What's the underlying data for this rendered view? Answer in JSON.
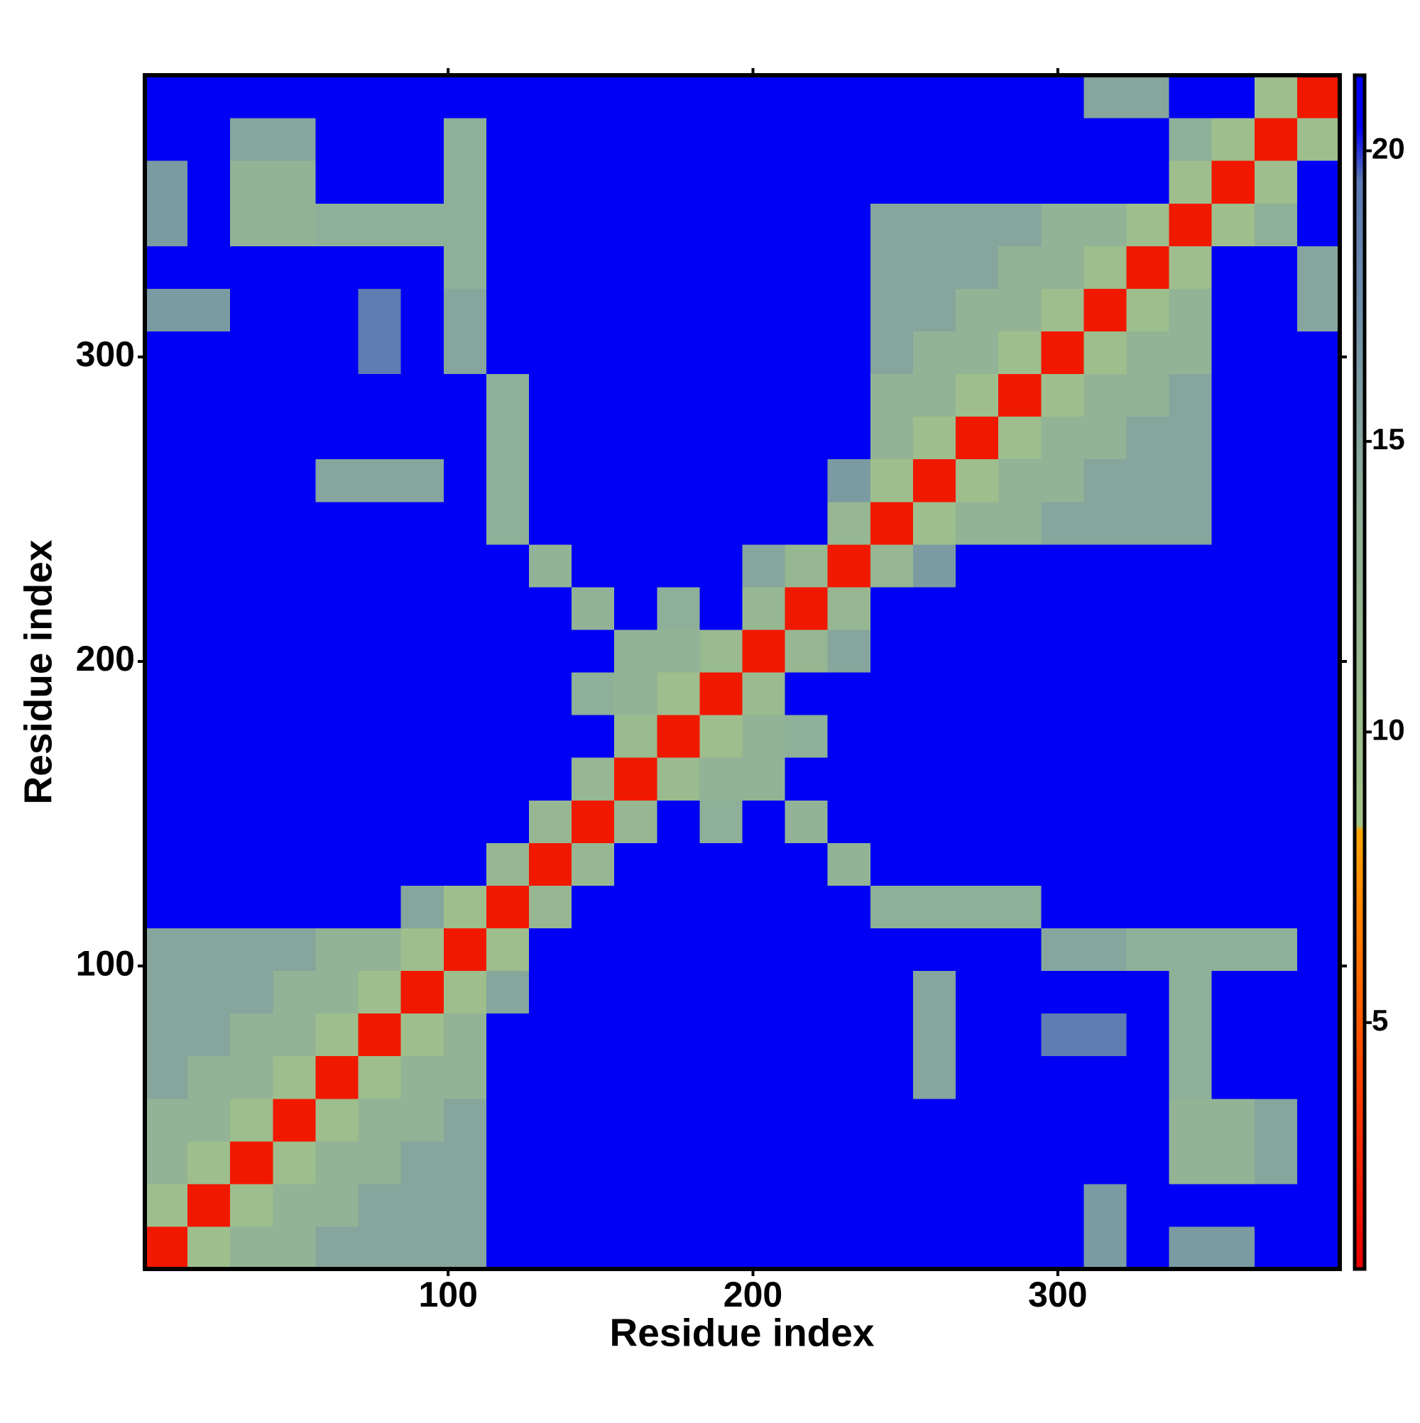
{
  "chart_data": {
    "type": "heatmap",
    "xlabel": "Residue index",
    "ylabel": "Residue index",
    "xlim": [
      0.5,
      392.5
    ],
    "ylim": [
      0.5,
      392.5
    ],
    "xticks": [
      100,
      200,
      300
    ],
    "yticks": [
      100,
      200,
      300
    ],
    "zlim": [
      0.76,
      21.3
    ],
    "zticks": [
      5,
      10,
      15,
      20
    ],
    "colorscale": [
      {
        "value": 0.76,
        "color": "#e80000"
      },
      {
        "value": 4,
        "color": "#ff4000"
      },
      {
        "value": 8.3,
        "color": "#ffa500"
      },
      {
        "value": 8.4,
        "color": "#a4c488"
      },
      {
        "value": 14,
        "color": "#8eaf98"
      },
      {
        "value": 19.5,
        "color": "#5a78b4"
      },
      {
        "value": 20.4,
        "color": "#0000f5"
      },
      {
        "value": 21.3,
        "color": "#0000f5"
      }
    ],
    "values": [
      [
        2,
        10,
        13,
        13,
        15,
        15,
        15,
        15,
        21,
        21,
        21,
        21,
        21,
        21,
        21,
        21,
        21,
        21,
        21,
        21,
        21,
        21,
        16,
        21,
        16,
        16,
        21,
        21
      ],
      [
        10,
        2,
        10,
        13,
        13,
        15,
        15,
        15,
        21,
        21,
        21,
        21,
        21,
        21,
        21,
        21,
        21,
        21,
        21,
        21,
        21,
        21,
        16,
        21,
        21,
        21,
        21,
        21
      ],
      [
        13,
        10,
        2,
        10,
        13,
        13,
        15,
        15,
        21,
        21,
        21,
        21,
        21,
        21,
        21,
        21,
        21,
        21,
        21,
        21,
        21,
        21,
        21,
        21,
        13,
        13,
        15,
        21
      ],
      [
        13,
        13,
        10,
        2,
        10,
        13,
        13,
        15,
        21,
        21,
        21,
        21,
        21,
        21,
        21,
        21,
        21,
        21,
        21,
        21,
        21,
        21,
        21,
        21,
        13,
        13,
        15,
        21
      ],
      [
        15,
        13,
        13,
        10,
        2,
        10,
        13,
        13,
        21,
        21,
        21,
        21,
        21,
        21,
        21,
        21,
        21,
        21,
        15,
        21,
        21,
        21,
        21,
        21,
        14,
        21,
        21,
        21
      ],
      [
        15,
        15,
        13,
        13,
        10,
        2,
        10,
        13,
        21,
        21,
        21,
        21,
        21,
        21,
        21,
        21,
        21,
        21,
        15,
        21,
        21,
        19,
        19,
        21,
        14,
        21,
        21,
        21
      ],
      [
        15,
        15,
        15,
        13,
        13,
        10,
        2,
        10,
        15,
        21,
        21,
        21,
        21,
        21,
        21,
        21,
        21,
        21,
        15,
        21,
        21,
        21,
        21,
        21,
        14,
        21,
        21,
        21
      ],
      [
        15,
        15,
        15,
        15,
        13,
        13,
        10,
        2,
        10,
        21,
        21,
        21,
        21,
        21,
        21,
        21,
        21,
        21,
        21,
        21,
        21,
        15,
        15,
        14,
        14,
        14,
        14,
        21
      ],
      [
        21,
        21,
        21,
        21,
        21,
        21,
        15,
        10,
        2,
        12,
        21,
        21,
        21,
        21,
        21,
        21,
        21,
        14,
        14,
        14,
        14,
        21,
        21,
        21,
        21,
        21,
        21,
        21
      ],
      [
        21,
        21,
        21,
        21,
        21,
        21,
        21,
        21,
        12,
        2,
        12,
        21,
        21,
        21,
        21,
        21,
        13,
        21,
        21,
        21,
        21,
        21,
        21,
        21,
        21,
        21,
        21,
        21
      ],
      [
        21,
        21,
        21,
        21,
        21,
        21,
        21,
        21,
        21,
        12,
        2,
        12,
        21,
        14,
        21,
        13,
        21,
        21,
        21,
        21,
        21,
        21,
        21,
        21,
        21,
        21,
        21,
        21
      ],
      [
        21,
        21,
        21,
        21,
        21,
        21,
        21,
        21,
        21,
        21,
        12,
        2,
        11,
        13,
        13,
        21,
        21,
        21,
        21,
        21,
        21,
        21,
        21,
        21,
        21,
        21,
        21,
        21
      ],
      [
        21,
        21,
        21,
        21,
        21,
        21,
        21,
        21,
        21,
        21,
        21,
        11,
        2,
        10,
        13,
        14,
        21,
        21,
        21,
        21,
        21,
        21,
        21,
        21,
        21,
        21,
        21,
        21
      ],
      [
        21,
        21,
        21,
        21,
        21,
        21,
        21,
        21,
        21,
        21,
        14,
        13,
        10,
        2,
        11,
        21,
        21,
        21,
        21,
        21,
        21,
        21,
        21,
        21,
        21,
        21,
        21,
        21
      ],
      [
        21,
        21,
        21,
        21,
        21,
        21,
        21,
        21,
        21,
        21,
        21,
        13,
        13,
        11,
        2,
        12,
        15,
        21,
        21,
        21,
        21,
        21,
        21,
        21,
        21,
        21,
        21,
        21
      ],
      [
        21,
        21,
        21,
        21,
        21,
        21,
        21,
        21,
        21,
        21,
        13,
        21,
        14,
        21,
        12,
        2,
        12,
        21,
        21,
        21,
        21,
        21,
        21,
        21,
        21,
        21,
        21,
        21
      ],
      [
        21,
        21,
        21,
        21,
        21,
        21,
        21,
        21,
        21,
        13,
        21,
        21,
        21,
        21,
        15,
        12,
        2,
        12,
        16,
        21,
        21,
        21,
        21,
        21,
        21,
        21,
        21,
        21
      ],
      [
        21,
        21,
        21,
        21,
        21,
        21,
        21,
        21,
        14,
        21,
        21,
        21,
        21,
        21,
        21,
        21,
        12,
        2,
        10,
        13,
        13,
        15,
        15,
        15,
        15,
        21,
        21,
        21
      ],
      [
        21,
        21,
        21,
        21,
        15,
        15,
        15,
        21,
        14,
        21,
        21,
        21,
        21,
        21,
        21,
        21,
        16,
        10,
        2,
        10,
        13,
        13,
        15,
        15,
        15,
        21,
        21,
        21
      ],
      [
        21,
        21,
        21,
        21,
        21,
        21,
        21,
        21,
        14,
        21,
        21,
        21,
        21,
        21,
        21,
        21,
        21,
        13,
        10,
        2,
        10,
        13,
        13,
        15,
        15,
        21,
        21,
        21
      ],
      [
        21,
        21,
        21,
        21,
        21,
        21,
        21,
        21,
        14,
        21,
        21,
        21,
        21,
        21,
        21,
        21,
        21,
        13,
        13,
        10,
        2,
        10,
        13,
        13,
        15,
        21,
        21,
        21
      ],
      [
        21,
        21,
        21,
        21,
        21,
        19,
        21,
        15,
        21,
        21,
        21,
        21,
        21,
        21,
        21,
        21,
        21,
        15,
        13,
        13,
        10,
        2,
        10,
        13,
        13,
        21,
        21,
        21
      ],
      [
        16,
        16,
        21,
        21,
        21,
        19,
        21,
        15,
        21,
        21,
        21,
        21,
        21,
        21,
        21,
        21,
        21,
        15,
        15,
        13,
        13,
        10,
        2,
        10,
        13,
        21,
        21,
        15
      ],
      [
        21,
        21,
        21,
        21,
        21,
        21,
        21,
        14,
        21,
        21,
        21,
        21,
        21,
        21,
        21,
        21,
        21,
        15,
        15,
        15,
        13,
        13,
        10,
        2,
        10,
        21,
        21,
        15
      ],
      [
        16,
        21,
        13,
        13,
        14,
        14,
        14,
        14,
        21,
        21,
        21,
        21,
        21,
        21,
        21,
        21,
        21,
        15,
        15,
        15,
        15,
        13,
        13,
        10,
        2,
        10,
        14,
        21
      ],
      [
        16,
        21,
        13,
        13,
        21,
        21,
        21,
        14,
        21,
        21,
        21,
        21,
        21,
        21,
        21,
        21,
        21,
        21,
        21,
        21,
        21,
        21,
        21,
        21,
        10,
        2,
        10,
        21
      ],
      [
        21,
        21,
        15,
        15,
        21,
        21,
        21,
        14,
        21,
        21,
        21,
        21,
        21,
        21,
        21,
        21,
        21,
        21,
        21,
        21,
        21,
        21,
        21,
        21,
        14,
        10,
        2,
        10
      ],
      [
        21,
        21,
        21,
        21,
        21,
        21,
        21,
        21,
        21,
        21,
        21,
        21,
        21,
        21,
        21,
        21,
        21,
        21,
        21,
        21,
        21,
        21,
        15,
        15,
        21,
        21,
        10,
        2
      ]
    ]
  }
}
